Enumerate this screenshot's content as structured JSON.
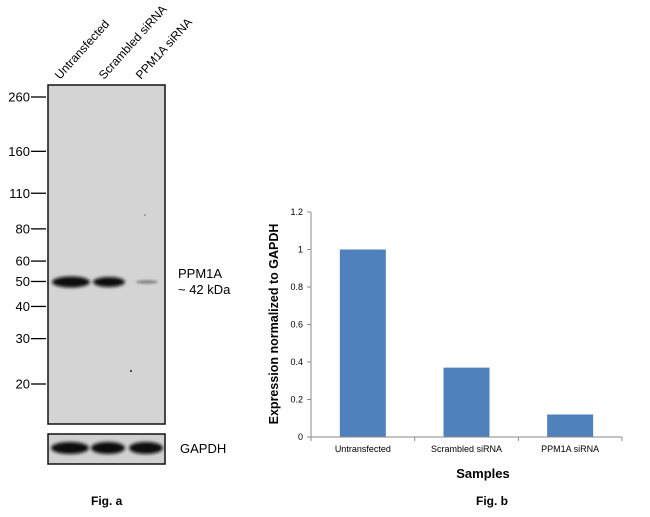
{
  "figure_a": {
    "caption": "Fig. a",
    "lanes": [
      "Untransfected",
      "Scrambled siRNA",
      "PPM1A siRNA"
    ],
    "markers": [
      {
        "label": "260",
        "kda": 260
      },
      {
        "label": "160",
        "kda": 160
      },
      {
        "label": "110",
        "kda": 110
      },
      {
        "label": "80",
        "kda": 80
      },
      {
        "label": "60",
        "kda": 60
      },
      {
        "label": "50",
        "kda": 50
      },
      {
        "label": "40",
        "kda": 40
      },
      {
        "label": "30",
        "kda": 30
      },
      {
        "label": "20",
        "kda": 20
      }
    ],
    "target_label": "PPM1A",
    "target_size": "~ 42 kDa",
    "loading_control": "GAPDH",
    "band_intensity": [
      1.0,
      0.95,
      0.15
    ]
  },
  "chart_data": {
    "type": "bar",
    "title": "",
    "caption": "Fig. b",
    "categories": [
      "Untransfected",
      "Scrambled siRNA",
      "PPM1A siRNA"
    ],
    "values": [
      1.0,
      0.37,
      0.12
    ],
    "xlabel": "Samples",
    "ylabel": "Expression normalized to GAPDH",
    "ylim": [
      0,
      1.2
    ],
    "yticks": [
      0,
      0.2,
      0.4,
      0.6,
      0.8,
      1,
      1.2
    ],
    "ytick_labels": [
      "0",
      "0.2",
      "0.4",
      "0.6",
      "0.8",
      "1",
      "1.2"
    ],
    "bar_color": "#4f81bd",
    "grid": false,
    "legend": "none"
  }
}
